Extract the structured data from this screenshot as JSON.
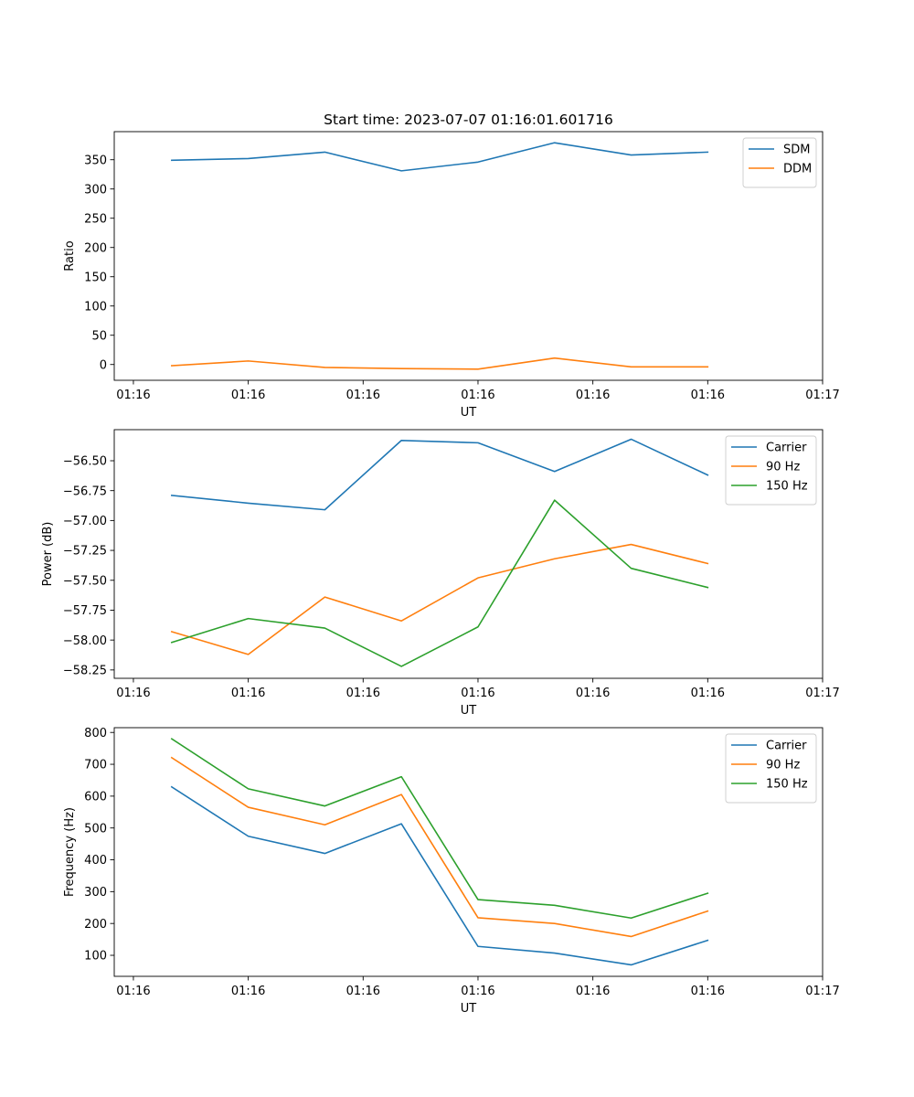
{
  "figure_title": "Start time: 2023-07-07 01:16:01.601716",
  "chart_data": [
    {
      "type": "line",
      "title": "Start time: 2023-07-07 01:16:01.601716",
      "xlabel": "UT",
      "ylabel": "Ratio",
      "x": [
        1,
        2,
        3,
        4,
        5,
        6,
        7,
        8
      ],
      "xlim": [
        0.25,
        9.5
      ],
      "xticks": [
        0.5,
        2,
        3.5,
        5,
        6.5,
        8,
        9.5
      ],
      "xtick_labels": [
        "01:16",
        "01:16",
        "01:16",
        "01:16",
        "01:16",
        "01:16",
        "01:17"
      ],
      "ylim": [
        -27,
        398
      ],
      "yticks": [
        0,
        50,
        100,
        150,
        200,
        250,
        300,
        350
      ],
      "ytick_labels": [
        "0",
        "50",
        "100",
        "150",
        "200",
        "250",
        "300",
        "350"
      ],
      "legend_position": "top-right",
      "series": [
        {
          "name": "SDM",
          "color": "#1f77b4",
          "values": [
            349,
            352,
            363,
            331,
            346,
            379,
            358,
            363
          ]
        },
        {
          "name": "DDM",
          "color": "#ff7f0e",
          "values": [
            -2,
            6,
            -5,
            -7,
            -8,
            11,
            -4,
            -4
          ]
        }
      ]
    },
    {
      "type": "line",
      "title": "",
      "xlabel": "UT",
      "ylabel": "Power (dB)",
      "x": [
        1,
        2,
        3,
        4,
        5,
        6,
        7,
        8
      ],
      "xlim": [
        0.25,
        9.5
      ],
      "xticks": [
        0.5,
        2,
        3.5,
        5,
        6.5,
        8,
        9.5
      ],
      "xtick_labels": [
        "01:16",
        "01:16",
        "01:16",
        "01:16",
        "01:16",
        "01:16",
        "01:17"
      ],
      "ylim": [
        -58.32,
        -56.24
      ],
      "yticks": [
        -58.25,
        -58.0,
        -57.75,
        -57.5,
        -57.25,
        -57.0,
        -56.75,
        -56.5
      ],
      "ytick_labels": [
        "−58.25",
        "−58.00",
        "−57.75",
        "−57.50",
        "−57.25",
        "−57.00",
        "−56.75",
        "−56.50"
      ],
      "legend_position": "top-right",
      "series": [
        {
          "name": "Carrier",
          "color": "#1f77b4",
          "values": [
            -56.79,
            -56.855,
            -56.91,
            -56.33,
            -56.35,
            -56.59,
            -56.32,
            -56.62
          ]
        },
        {
          "name": "90 Hz",
          "color": "#ff7f0e",
          "values": [
            -57.93,
            -58.12,
            -57.64,
            -57.84,
            -57.48,
            -57.32,
            -57.2,
            -57.36
          ]
        },
        {
          "name": "150 Hz",
          "color": "#2ca02c",
          "values": [
            -58.02,
            -57.82,
            -57.9,
            -58.22,
            -57.89,
            -56.83,
            -57.4,
            -57.56
          ]
        }
      ]
    },
    {
      "type": "line",
      "title": "",
      "xlabel": "UT",
      "ylabel": "Frequency (Hz)",
      "x": [
        1,
        2,
        3,
        4,
        5,
        6,
        7,
        8
      ],
      "xlim": [
        0.25,
        9.5
      ],
      "xticks": [
        0.5,
        2,
        3.5,
        5,
        6.5,
        8,
        9.5
      ],
      "xtick_labels": [
        "01:16",
        "01:16",
        "01:16",
        "01:16",
        "01:16",
        "01:16",
        "01:17"
      ],
      "ylim": [
        34,
        815
      ],
      "yticks": [
        100,
        200,
        300,
        400,
        500,
        600,
        700,
        800
      ],
      "ytick_labels": [
        "100",
        "200",
        "300",
        "400",
        "500",
        "600",
        "700",
        "800"
      ],
      "legend_position": "top-right",
      "series": [
        {
          "name": "Carrier",
          "color": "#1f77b4",
          "values": [
            629,
            474,
            420,
            513,
            128,
            107,
            70,
            147
          ]
        },
        {
          "name": "90 Hz",
          "color": "#ff7f0e",
          "values": [
            721,
            565,
            510,
            605,
            218,
            200,
            159,
            239
          ]
        },
        {
          "name": "150 Hz",
          "color": "#2ca02c",
          "values": [
            780,
            623,
            569,
            661,
            275,
            257,
            217,
            295
          ]
        }
      ]
    }
  ]
}
